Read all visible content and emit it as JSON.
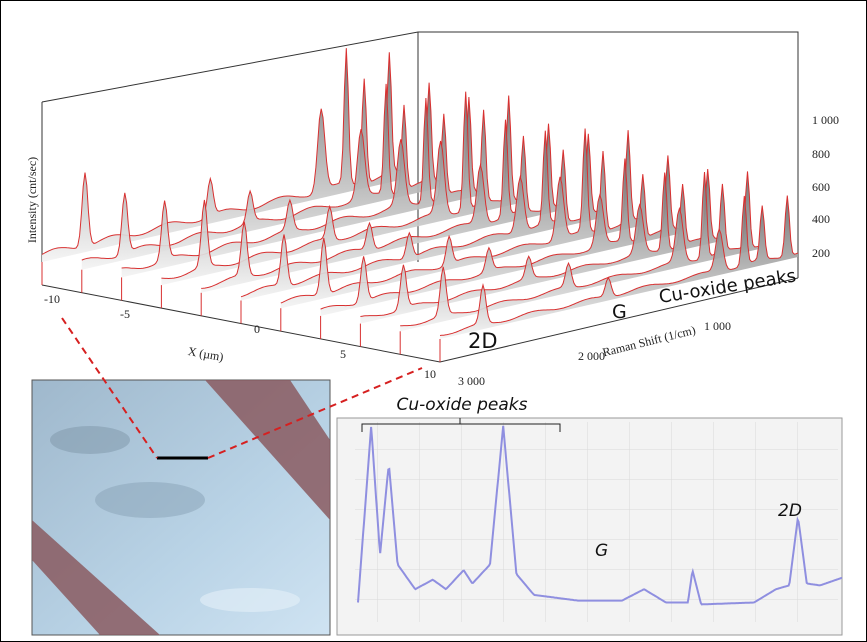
{
  "figure": {
    "axes_3d": {
      "z_label": "Intensity (cnt/sec)",
      "z_ticks": [
        "200",
        "400",
        "600",
        "800",
        "1 000"
      ],
      "x_label": "X (µm)",
      "x_ticks": [
        "-10",
        "-5",
        "0",
        "5",
        "10"
      ],
      "shift_label": "Raman Shift (1/cm)",
      "shift_ticks": [
        "1 000",
        "2 000",
        "3 000"
      ],
      "annotations": [
        "2D",
        "G",
        "Cu-oxide peaks"
      ]
    },
    "spectrum": {
      "annotations": [
        "Cu-oxide peaks",
        "G",
        "2D"
      ]
    }
  }
}
